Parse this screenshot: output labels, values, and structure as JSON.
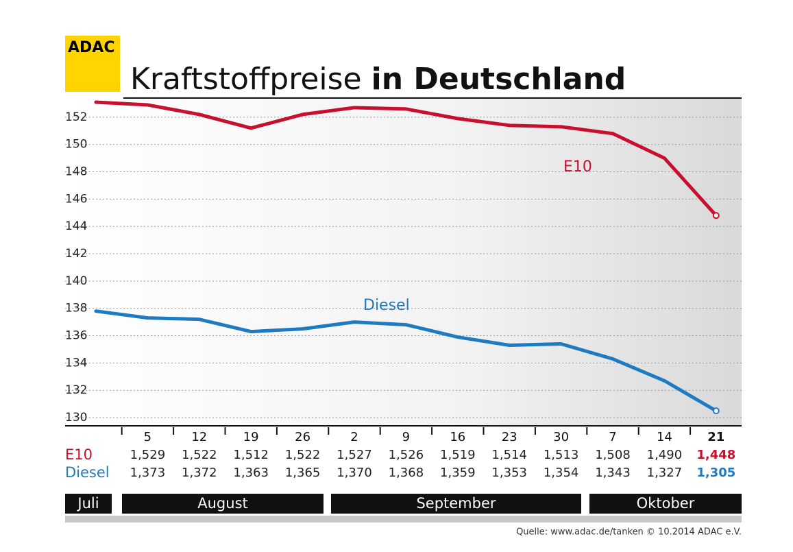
{
  "logo": "ADAC",
  "chart_data": {
    "type": "line",
    "title": "Kraftstoffpreise",
    "title_emphasis": "in Deutschland",
    "categories": [
      null,
      "5",
      "12",
      "19",
      "26",
      "2",
      "9",
      "16",
      "23",
      "30",
      "7",
      "14",
      "21"
    ],
    "months": [
      "Juli",
      "August",
      "September",
      "Oktober"
    ],
    "series": [
      {
        "name": "E10",
        "color": "#c8102e",
        "values": [
          153.1,
          152.9,
          152.2,
          151.2,
          152.2,
          152.7,
          152.6,
          151.9,
          151.4,
          151.3,
          150.8,
          149.0,
          144.8
        ],
        "value_labels": [
          null,
          "1,529",
          "1,522",
          "1,512",
          "1,522",
          "1,527",
          "1,526",
          "1,519",
          "1,514",
          "1,513",
          "1,508",
          "1,490",
          "1,448"
        ]
      },
      {
        "name": "Diesel",
        "color": "#1f7bc1",
        "values": [
          137.8,
          137.3,
          137.2,
          136.3,
          136.5,
          137.0,
          136.8,
          135.9,
          135.3,
          135.4,
          134.3,
          132.7,
          130.5
        ],
        "value_labels": [
          null,
          "1,373",
          "1,372",
          "1,363",
          "1,365",
          "1,370",
          "1,368",
          "1,359",
          "1,353",
          "1,354",
          "1,343",
          "1,327",
          "1,305"
        ]
      }
    ],
    "ylim": [
      129.4,
      153.4
    ],
    "yticks": [
      130,
      132,
      134,
      136,
      138,
      140,
      142,
      144,
      146,
      148,
      150,
      152
    ],
    "grid": true,
    "source": "Quelle: www.adac.de/tanken   © 10.2014  ADAC e.V."
  }
}
